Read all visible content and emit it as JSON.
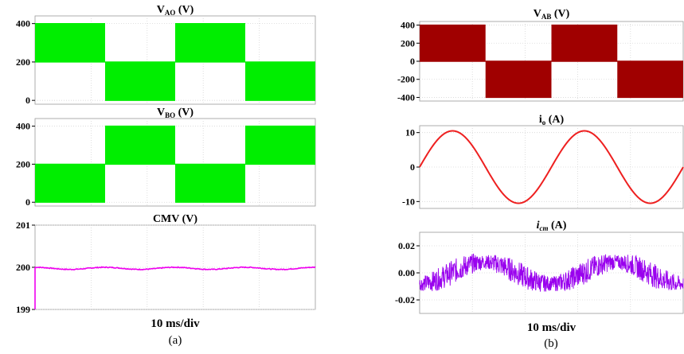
{
  "figure": {
    "panel_a": {
      "caption": "(a)",
      "timebase": "10 ms/div"
    },
    "panel_b": {
      "caption": "(b)",
      "timebase": "10 ms/div"
    }
  },
  "chart_data": [
    {
      "id": "vao",
      "type": "line",
      "title": {
        "main": "V",
        "sub": "AO",
        "unit": " (V)"
      },
      "ylim": [
        -20,
        440
      ],
      "yticks": [
        "400",
        "200",
        "0"
      ],
      "ytick_values": [
        400,
        200,
        0
      ],
      "xlim": [
        0,
        50
      ],
      "grid": true,
      "color": "#00EE00",
      "series": [
        {
          "segments": [
            {
              "x": [
                0,
                12.5
              ],
              "y": [
                200,
                400
              ]
            },
            {
              "x": [
                12.5,
                25
              ],
              "y": [
                0,
                200
              ]
            },
            {
              "x": [
                25,
                37.5
              ],
              "y": [
                200,
                400
              ]
            },
            {
              "x": [
                37.5,
                50
              ],
              "y": [
                0,
                200
              ]
            }
          ]
        }
      ]
    },
    {
      "id": "vbo",
      "type": "line",
      "title": {
        "main": "V",
        "sub": "BO",
        "unit": " (V)"
      },
      "ylim": [
        -20,
        440
      ],
      "yticks": [
        "400",
        "200",
        "0"
      ],
      "ytick_values": [
        400,
        200,
        0
      ],
      "xlim": [
        0,
        50
      ],
      "grid": true,
      "color": "#00EE00",
      "series": [
        {
          "segments": [
            {
              "x": [
                0,
                12.5
              ],
              "y": [
                0,
                200
              ]
            },
            {
              "x": [
                12.5,
                25
              ],
              "y": [
                200,
                400
              ]
            },
            {
              "x": [
                25,
                37.5
              ],
              "y": [
                0,
                200
              ]
            },
            {
              "x": [
                37.5,
                50
              ],
              "y": [
                200,
                400
              ]
            }
          ]
        }
      ]
    },
    {
      "id": "cmv",
      "type": "line",
      "title": {
        "main": "CMV (V)"
      },
      "ylim": [
        199,
        201
      ],
      "yticks": [
        "201",
        "200",
        "199"
      ],
      "ytick_values": [
        201,
        200,
        199
      ],
      "xlim": [
        0,
        50
      ],
      "grid": true,
      "color": "#EE00EE",
      "xlabel": "10 ms/div",
      "series": [
        {
          "mean": 200.0,
          "ripple": 0.05,
          "start_from": 199
        }
      ]
    },
    {
      "id": "vab",
      "type": "line",
      "title": {
        "main": "V",
        "sub": "AB",
        "unit": " (V)"
      },
      "ylim": [
        -440,
        440
      ],
      "yticks": [
        "400",
        "200",
        "0",
        "-200",
        "-400"
      ],
      "ytick_values": [
        400,
        200,
        0,
        -200,
        -400
      ],
      "xlim": [
        0,
        50
      ],
      "grid": true,
      "color": "#A00000",
      "series": [
        {
          "segments": [
            {
              "x": [
                0,
                12.5
              ],
              "y": [
                0,
                400
              ]
            },
            {
              "x": [
                12.5,
                25
              ],
              "y": [
                -400,
                0
              ]
            },
            {
              "x": [
                25,
                37.5
              ],
              "y": [
                0,
                400
              ]
            },
            {
              "x": [
                37.5,
                50
              ],
              "y": [
                -400,
                0
              ]
            }
          ]
        }
      ]
    },
    {
      "id": "io",
      "type": "line",
      "title": {
        "main": "i",
        "sub": "o",
        "unit": " (A)"
      },
      "ylim": [
        -12,
        12
      ],
      "yticks": [
        "10",
        "0",
        "-10"
      ],
      "ytick_values": [
        10,
        0,
        -10
      ],
      "xlim": [
        0,
        50
      ],
      "grid": true,
      "color": "#EE2020",
      "series": [
        {
          "amplitude": 10.5,
          "period_ms": 25
        }
      ]
    },
    {
      "id": "icm",
      "type": "line",
      "title": {
        "main": "i",
        "sub": "cm",
        "unit": " (A)",
        "italic": true
      },
      "ylim": [
        -0.03,
        0.03
      ],
      "yticks": [
        "0.02",
        "0.00",
        "-0.02"
      ],
      "ytick_values": [
        0.02,
        0.0,
        -0.02
      ],
      "xlim": [
        0,
        50
      ],
      "grid": true,
      "color": "#9900EE",
      "xlabel": "10 ms/div",
      "series": [
        {
          "amplitude": 0.008,
          "noise": 0.009,
          "period_ms": 25
        }
      ]
    }
  ]
}
